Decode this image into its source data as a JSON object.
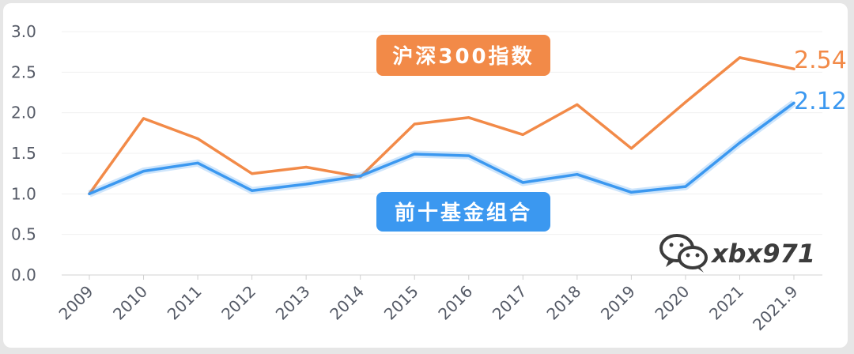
{
  "chart_data": {
    "type": "line",
    "categories": [
      "2009",
      "2010",
      "2011",
      "2012",
      "2013",
      "2014",
      "2015",
      "2016",
      "2017",
      "2018",
      "2019",
      "2020",
      "2021",
      "2021.9"
    ],
    "ylim": [
      0,
      3.0
    ],
    "yticks": [
      "0.0",
      "0.5",
      "1.0",
      "1.5",
      "2.0",
      "2.5",
      "3.0"
    ],
    "grid": true,
    "series": [
      {
        "name": "沪深300指数",
        "color": "#f28a48",
        "values": [
          1.0,
          1.93,
          1.68,
          1.25,
          1.33,
          1.21,
          1.86,
          1.94,
          1.73,
          2.1,
          1.56,
          2.13,
          2.68,
          2.54
        ],
        "end_label": "2.54"
      },
      {
        "name": "前十基金组合",
        "color": "#3b98f0",
        "values": [
          1.0,
          1.28,
          1.38,
          1.04,
          1.12,
          1.22,
          1.49,
          1.47,
          1.14,
          1.24,
          1.02,
          1.09,
          1.63,
          2.12
        ],
        "end_label": "2.12"
      }
    ]
  },
  "watermark": {
    "text": "xbx971",
    "icon": "wechat-icon"
  }
}
